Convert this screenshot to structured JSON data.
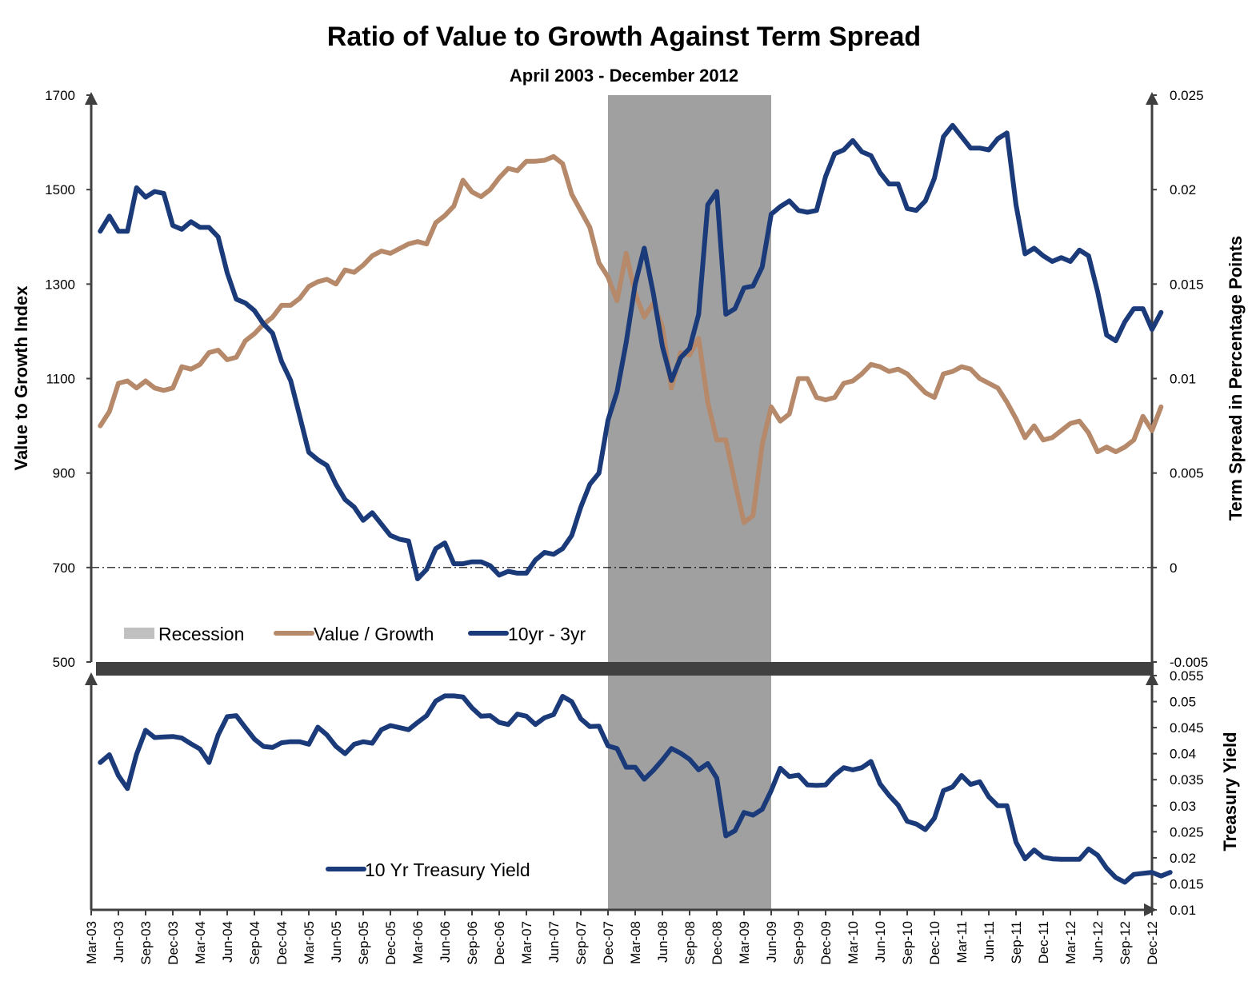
{
  "colors": {
    "value_growth": "#b5896a",
    "spread": "#1a3a7a",
    "yield": "#1a3a7a",
    "recession": "#a0a0a0",
    "axis": "#404040",
    "divider": "#404040"
  },
  "chart_data": [
    {
      "type": "line",
      "title": "Ratio of Value to Growth Against Term Spread",
      "subtitle": "April 2003 - December 2012",
      "ylabel": "Value to Growth Index",
      "y2label": "Term Spread in Percentage Points",
      "ylim": [
        500,
        1700
      ],
      "y2lim": [
        -0.005,
        0.025
      ],
      "yticks": [
        "1700",
        "1500",
        "1300",
        "1100",
        "900",
        "700",
        "500"
      ],
      "y2ticks": [
        "0.025",
        "0.02",
        "0.015",
        "0.01",
        "0.005",
        "0",
        "-0.005"
      ],
      "reference_line": 0,
      "recession": {
        "start": "Dec-07",
        "end": "Jun-09",
        "label": "Recession"
      },
      "legend": [
        "Recession",
        "Value / Growth",
        "10yr - 3yr"
      ],
      "series": [
        {
          "name": "Value / Growth",
          "axis": "left",
          "start": "Apr-03",
          "values": [
            1000,
            1030,
            1090,
            1095,
            1080,
            1095,
            1080,
            1075,
            1080,
            1125,
            1120,
            1130,
            1155,
            1160,
            1140,
            1145,
            1180,
            1195,
            1215,
            1230,
            1255,
            1255,
            1270,
            1295,
            1305,
            1310,
            1300,
            1330,
            1325,
            1340,
            1360,
            1370,
            1365,
            1375,
            1385,
            1390,
            1385,
            1430,
            1445,
            1465,
            1520,
            1495,
            1485,
            1500,
            1525,
            1545,
            1540,
            1560,
            1560,
            1562,
            1570,
            1555,
            1490,
            1455,
            1420,
            1345,
            1315,
            1265,
            1365,
            1280,
            1230,
            1260,
            1210,
            1080,
            1155,
            1150,
            1185,
            1050,
            970,
            970,
            880,
            795,
            810,
            960,
            1040,
            1010,
            1025,
            1100,
            1100,
            1060,
            1055,
            1060,
            1090,
            1095,
            1110,
            1130,
            1125,
            1115,
            1120,
            1110,
            1090,
            1070,
            1060,
            1110,
            1115,
            1125,
            1120,
            1100,
            1090,
            1080,
            1050,
            1015,
            975,
            1000,
            970,
            975,
            990,
            1005,
            1010,
            985,
            945,
            955,
            945,
            955,
            970,
            1020,
            990,
            1040
          ]
        },
        {
          "name": "10yr - 3yr",
          "axis": "right",
          "start": "Apr-03",
          "values": [
            0.0178,
            0.0186,
            0.0178,
            0.0178,
            0.0201,
            0.0196,
            0.0199,
            0.0198,
            0.0181,
            0.0179,
            0.0183,
            0.018,
            0.018,
            0.0175,
            0.0156,
            0.0142,
            0.014,
            0.0136,
            0.0129,
            0.0124,
            0.0109,
            0.0099,
            0.008,
            0.0061,
            0.0057,
            0.0054,
            0.0044,
            0.0036,
            0.0032,
            0.0025,
            0.0029,
            0.0023,
            0.0017,
            0.0015,
            0.0014,
            -0.0006,
            -0.0001,
            0.001,
            0.0013,
            0.0002,
            0.0002,
            0.0003,
            0.0003,
            0.0001,
            -0.0004,
            -0.0002,
            -0.0003,
            -0.0003,
            0.0004,
            0.0008,
            0.0007,
            0.001,
            0.0017,
            0.0032,
            0.0044,
            0.005,
            0.0078,
            0.0093,
            0.0119,
            0.015,
            0.0169,
            0.0145,
            0.0117,
            0.0099,
            0.0111,
            0.0116,
            0.0134,
            0.0192,
            0.0199,
            0.0134,
            0.0137,
            0.0148,
            0.0149,
            0.0159,
            0.0187,
            0.0191,
            0.0194,
            0.0189,
            0.0188,
            0.0189,
            0.0207,
            0.0219,
            0.0221,
            0.0226,
            0.022,
            0.0218,
            0.0209,
            0.0203,
            0.0203,
            0.019,
            0.0189,
            0.0194,
            0.0206,
            0.0228,
            0.0234,
            0.0228,
            0.0222,
            0.0222,
            0.0221,
            0.0227,
            0.023,
            0.0192,
            0.0166,
            0.0169,
            0.0165,
            0.0162,
            0.0164,
            0.0162,
            0.0168,
            0.0165,
            0.0146,
            0.0123,
            0.012,
            0.013,
            0.0137,
            0.0137,
            0.0126,
            0.0135
          ]
        }
      ]
    },
    {
      "type": "line",
      "ylabel": "Treasury Yield",
      "ylim": [
        0.01,
        0.055
      ],
      "yticks": [
        "0.055",
        "0.05",
        "0.045",
        "0.04",
        "0.035",
        "0.03",
        "0.025",
        "0.02",
        "0.015",
        "0.01"
      ],
      "x_labels": [
        "Mar-03",
        "Jun-03",
        "Sep-03",
        "Dec-03",
        "Mar-04",
        "Jun-04",
        "Sep-04",
        "Dec-04",
        "Mar-05",
        "Jun-05",
        "Sep-05",
        "Dec-05",
        "Mar-06",
        "Jun-06",
        "Sep-06",
        "Dec-06",
        "Mar-07",
        "Jun-07",
        "Sep-07",
        "Dec-07",
        "Mar-08",
        "Jun-08",
        "Sep-08",
        "Dec-08",
        "Mar-09",
        "Jun-09",
        "Sep-09",
        "Dec-09",
        "Mar-10",
        "Jun-10",
        "Sep-10",
        "Dec-10",
        "Mar-11",
        "Jun-11",
        "Sep-11",
        "Dec-11",
        "Mar-12",
        "Jun-12",
        "Sep-12",
        "Dec-12"
      ],
      "legend": [
        "10 Yr Treasury Yield"
      ],
      "series": [
        {
          "name": "10 Yr Treasury Yield",
          "start": "Apr-03",
          "values": [
            0.0383,
            0.0398,
            0.0358,
            0.0333,
            0.0399,
            0.0445,
            0.0431,
            0.0432,
            0.0433,
            0.043,
            0.0419,
            0.0409,
            0.0383,
            0.0436,
            0.0471,
            0.0473,
            0.045,
            0.0428,
            0.0414,
            0.0412,
            0.0421,
            0.0423,
            0.0423,
            0.0418,
            0.0451,
            0.0436,
            0.0414,
            0.04,
            0.0418,
            0.0423,
            0.042,
            0.0446,
            0.0454,
            0.045,
            0.0446,
            0.046,
            0.0473,
            0.0501,
            0.0511,
            0.0511,
            0.0509,
            0.0488,
            0.0472,
            0.0473,
            0.046,
            0.0456,
            0.0476,
            0.0472,
            0.0456,
            0.0469,
            0.0475,
            0.051,
            0.05,
            0.0467,
            0.0452,
            0.0453,
            0.0415,
            0.041,
            0.0374,
            0.0374,
            0.0351,
            0.0368,
            0.0388,
            0.041,
            0.0401,
            0.0389,
            0.0369,
            0.0381,
            0.0353,
            0.0242,
            0.0252,
            0.0287,
            0.0282,
            0.0293,
            0.0329,
            0.0372,
            0.0356,
            0.0359,
            0.034,
            0.0339,
            0.034,
            0.0359,
            0.0373,
            0.0369,
            0.0373,
            0.0385,
            0.0342,
            0.032,
            0.0301,
            0.027,
            0.0265,
            0.0254,
            0.0276,
            0.0329,
            0.0336,
            0.0358,
            0.0341,
            0.0346,
            0.0317,
            0.03,
            0.03,
            0.023,
            0.0198,
            0.0215,
            0.0201,
            0.0198,
            0.0197,
            0.0197,
            0.0197,
            0.0217,
            0.0205,
            0.018,
            0.0162,
            0.0153,
            0.0168,
            0.017,
            0.0172,
            0.0165,
            0.0172
          ]
        }
      ]
    }
  ]
}
